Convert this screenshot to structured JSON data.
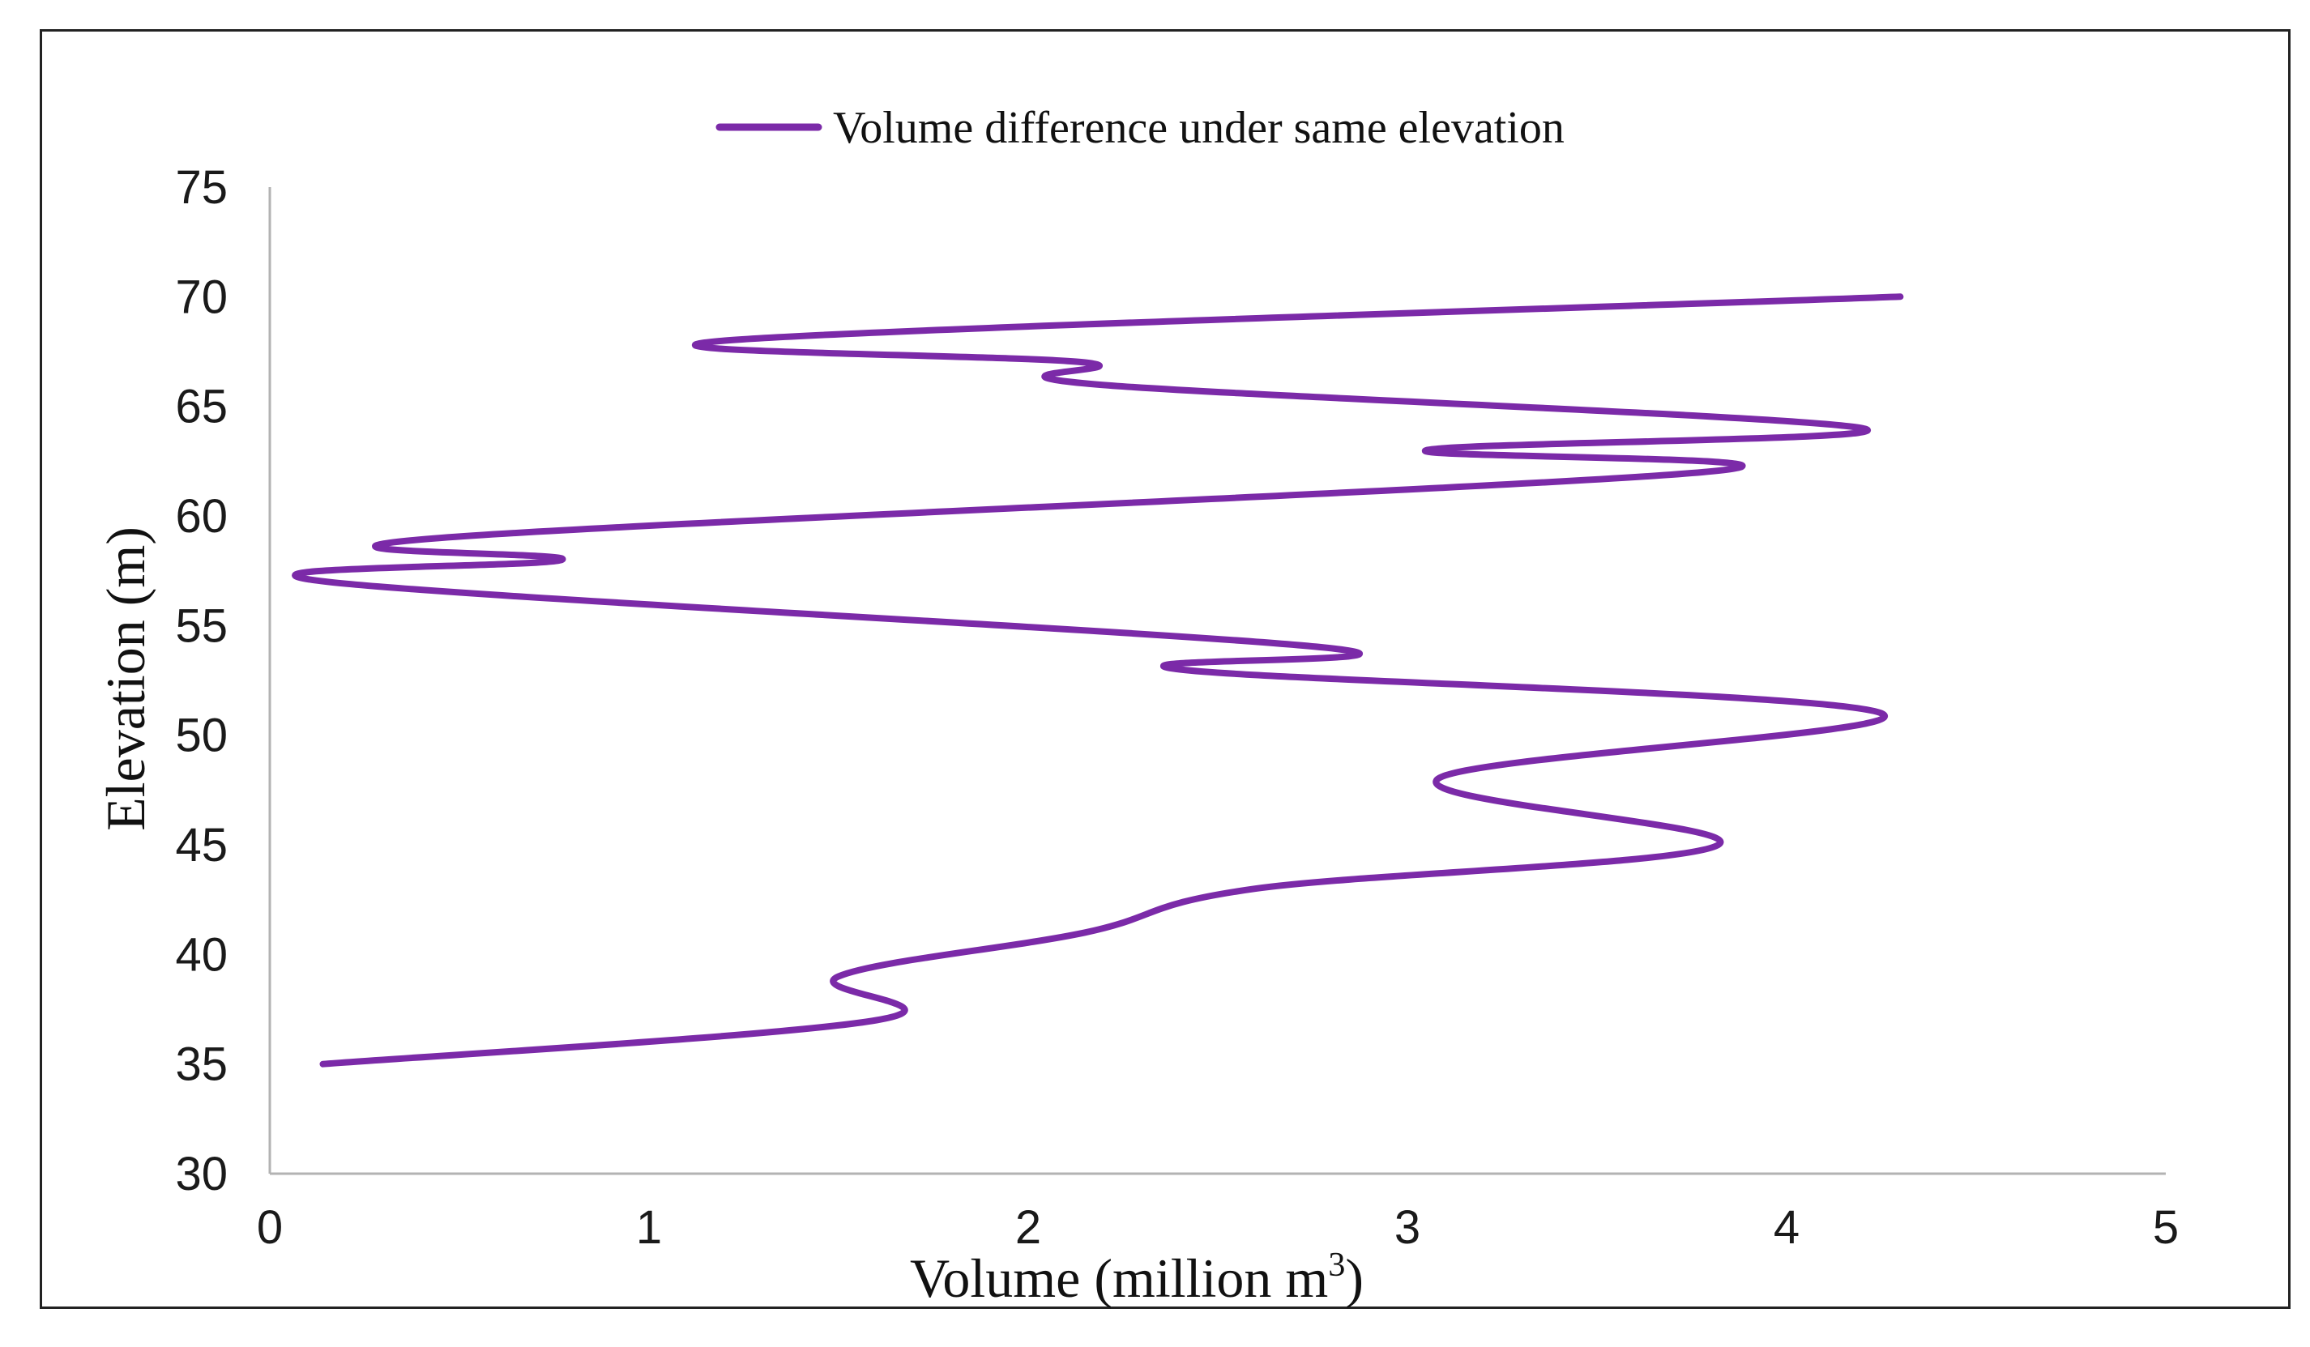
{
  "chart_data": {
    "type": "line",
    "title": "",
    "xlabel": "Volume (million m",
    "xlabel_superscript": "3",
    "xlabel_suffix": ")",
    "ylabel": "Elevation (m)",
    "xlim": [
      0,
      5
    ],
    "ylim": [
      30,
      75
    ],
    "xticks": [
      0,
      1,
      2,
      3,
      4,
      5
    ],
    "yticks": [
      30,
      35,
      40,
      45,
      50,
      55,
      60,
      65,
      70,
      75
    ],
    "grid": false,
    "legend_position": "top-center",
    "series": [
      {
        "name": "Volume difference under same elevation",
        "color": "#7B2AA8",
        "points": [
          {
            "x": 0.14,
            "y": 35
          },
          {
            "x": 1.6,
            "y": 37
          },
          {
            "x": 1.5,
            "y": 39
          },
          {
            "x": 2.15,
            "y": 41
          },
          {
            "x": 2.6,
            "y": 43
          },
          {
            "x": 3.82,
            "y": 45
          },
          {
            "x": 3.08,
            "y": 48
          },
          {
            "x": 4.25,
            "y": 51
          },
          {
            "x": 2.4,
            "y": 53
          },
          {
            "x": 2.78,
            "y": 54
          },
          {
            "x": 0.15,
            "y": 57
          },
          {
            "x": 0.77,
            "y": 58
          },
          {
            "x": 0.45,
            "y": 59
          },
          {
            "x": 3.78,
            "y": 62
          },
          {
            "x": 3.05,
            "y": 63
          },
          {
            "x": 4.2,
            "y": 64
          },
          {
            "x": 2.18,
            "y": 66
          },
          {
            "x": 2.15,
            "y": 67
          },
          {
            "x": 1.2,
            "y": 68
          },
          {
            "x": 4.3,
            "y": 70
          }
        ]
      }
    ]
  }
}
